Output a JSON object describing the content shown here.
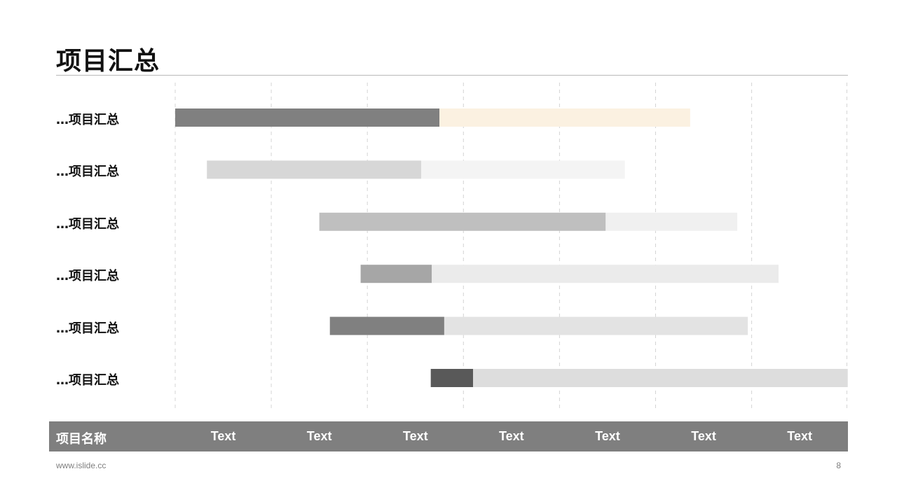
{
  "slide": {
    "title": "项目汇总",
    "footer_url": "www.islide.cc",
    "page_number": "8"
  },
  "chart_data": {
    "type": "bar",
    "orientation": "horizontal-gantt",
    "header_label": "项目名称",
    "timeline_columns": [
      "Text",
      "Text",
      "Text",
      "Text",
      "Text",
      "Text",
      "Text"
    ],
    "x_range": [
      0,
      7
    ],
    "grid": "vertical dashed",
    "tasks": [
      {
        "label": "…项目汇总",
        "start": 0.0,
        "progress_end": 2.75,
        "end": 5.36,
        "done_color": "#808080",
        "remain_color": "#fbf1e1"
      },
      {
        "label": "…项目汇总",
        "start": 0.33,
        "progress_end": 2.56,
        "end": 4.68,
        "done_color": "#d7d7d7",
        "remain_color": "#f4f4f4"
      },
      {
        "label": "…项目汇总",
        "start": 1.5,
        "progress_end": 4.48,
        "end": 5.85,
        "done_color": "#bfbfbf",
        "remain_color": "#f0f0f0"
      },
      {
        "label": "…项目汇总",
        "start": 1.93,
        "progress_end": 2.67,
        "end": 6.28,
        "done_color": "#a6a6a6",
        "remain_color": "#ebebeb"
      },
      {
        "label": "…项目汇总",
        "start": 1.61,
        "progress_end": 2.8,
        "end": 5.96,
        "done_color": "#808080",
        "remain_color": "#e3e3e3"
      },
      {
        "label": "…项目汇总",
        "start": 2.66,
        "progress_end": 3.1,
        "end": 7.0,
        "done_color": "#595959",
        "remain_color": "#dddddd"
      }
    ]
  }
}
